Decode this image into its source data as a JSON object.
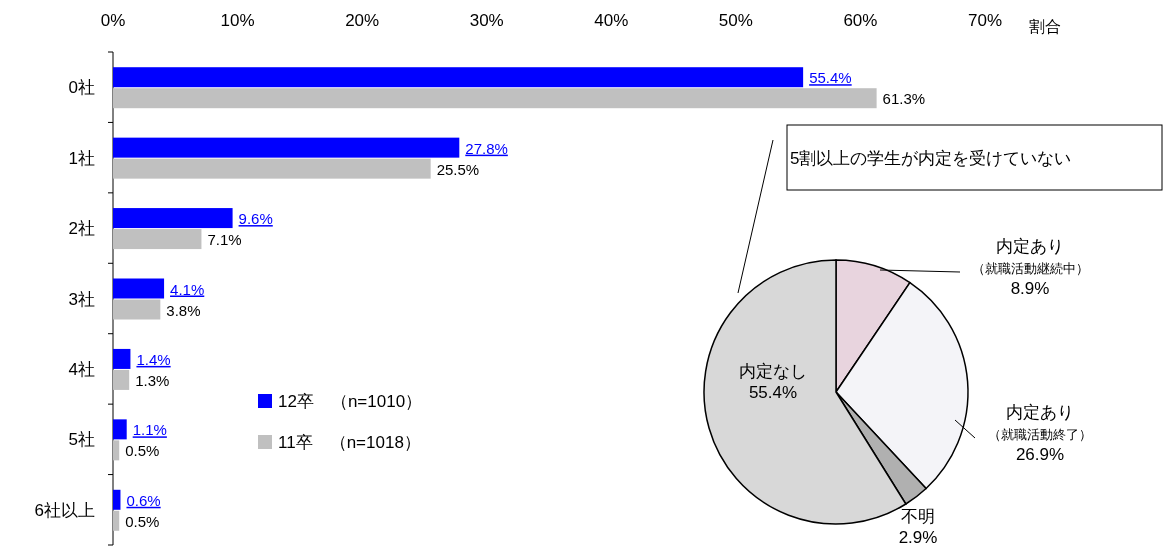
{
  "chart_data": [
    {
      "type": "bar",
      "orientation": "horizontal",
      "categories": [
        "0社",
        "1社",
        "2社",
        "3社",
        "4社",
        "5社",
        "6社以上"
      ],
      "series": [
        {
          "name": "12卒　（n=1010）",
          "color": "#0000ff",
          "values": [
            55.4,
            27.8,
            9.6,
            4.1,
            1.4,
            1.1,
            0.6
          ],
          "value_labels": [
            "55.4%",
            "27.8%",
            "9.6%",
            "4.1%",
            "1.4%",
            "1.1%",
            "0.6%"
          ]
        },
        {
          "name": "11卒　（n=1018）",
          "color": "#c0c0c0",
          "values": [
            61.3,
            25.5,
            7.1,
            3.8,
            1.3,
            0.5,
            0.5
          ],
          "value_labels": [
            "61.3%",
            "25.5%",
            "7.1%",
            "3.8%",
            "1.3%",
            "0.5%",
            "0.5%"
          ]
        }
      ],
      "xlim": [
        0,
        70
      ],
      "xticks": [
        {
          "value": 0,
          "label": "0%"
        },
        {
          "value": 10,
          "label": "10%"
        },
        {
          "value": 20,
          "label": "20%"
        },
        {
          "value": 30,
          "label": "30%"
        },
        {
          "value": 40,
          "label": "40%"
        },
        {
          "value": 50,
          "label": "50%"
        },
        {
          "value": 60,
          "label": "60%"
        },
        {
          "value": 70,
          "label": "70%"
        }
      ],
      "xlabel": "割合",
      "legend": "bottom",
      "grid": false
    },
    {
      "type": "pie",
      "categories": [
        "内定あり（就職活動継続中）",
        "内定あり（就職活動終了）",
        "不明",
        "内定なし"
      ],
      "values": [
        8.9,
        26.9,
        2.9,
        55.4
      ],
      "value_labels": [
        "8.9%",
        "26.9%",
        "2.9%",
        "55.4%"
      ],
      "colors": [
        "#e8d4de",
        "#f4f4f8",
        "#b0b0b0",
        "#d8d8d8"
      ],
      "annotations": [
        "5割以上の学生が内定を受けていない"
      ]
    }
  ]
}
